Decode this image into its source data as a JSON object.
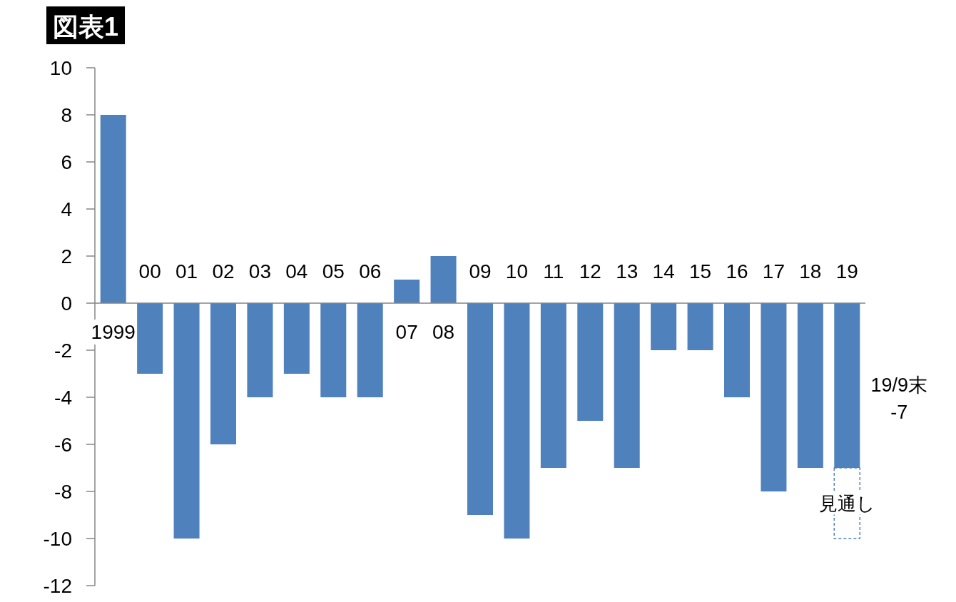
{
  "chart_data": {
    "type": "bar",
    "title": "図表1",
    "categories": [
      "1999",
      "00",
      "01",
      "02",
      "03",
      "04",
      "05",
      "06",
      "07",
      "08",
      "09",
      "10",
      "11",
      "12",
      "13",
      "14",
      "15",
      "16",
      "17",
      "18",
      "19"
    ],
    "series": [
      {
        "color": "#4f81bd",
        "values": [
          8,
          -3,
          -10,
          -6,
          -4,
          -3,
          -4,
          -4,
          1,
          2,
          -9,
          -10,
          -7,
          -5,
          -7,
          -2,
          -2,
          -4,
          -8,
          -7,
          -7
        ]
      },
      {
        "color": "#4f81bd",
        "line_style": "dashed",
        "values": [
          null,
          null,
          null,
          null,
          null,
          null,
          null,
          null,
          null,
          null,
          null,
          null,
          null,
          null,
          null,
          null,
          null,
          null,
          null,
          null,
          -3
        ]
      }
    ],
    "stacked": true,
    "ylim": [
      -12,
      10
    ],
    "yticks": [
      -12,
      -10,
      -8,
      -6,
      -4,
      -2,
      0,
      2,
      4,
      6,
      8,
      10
    ],
    "annotations": [
      "見通し",
      "19/9末\n-7"
    ]
  }
}
